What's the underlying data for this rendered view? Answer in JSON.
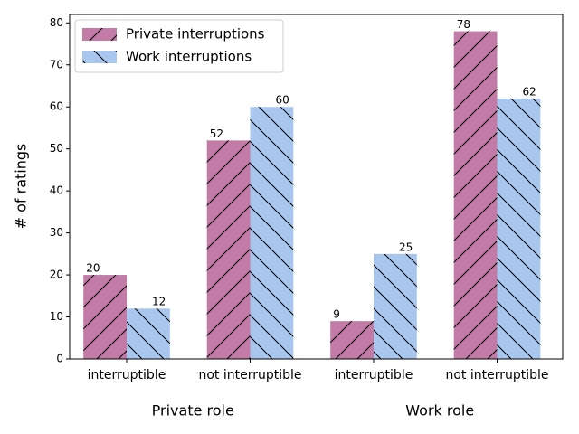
{
  "chart_data": {
    "type": "bar",
    "categories": [
      "interruptible",
      "not interruptible",
      "interruptible",
      "not interruptible"
    ],
    "groups": [
      "Private role",
      "Work role"
    ],
    "ylabel": "# of ratings",
    "series": [
      {
        "name": "Private interruptions",
        "color": "#c27ba7",
        "hatch": "/",
        "values": [
          20,
          52,
          9,
          78
        ]
      },
      {
        "name": "Work interruptions",
        "color": "#a8c6ee",
        "hatch": "\\",
        "values": [
          12,
          60,
          25,
          62
        ]
      }
    ],
    "ylim": [
      0,
      82
    ],
    "yticks": [
      0,
      10,
      20,
      30,
      40,
      50,
      60,
      70,
      80
    ],
    "legend": "upper left"
  }
}
